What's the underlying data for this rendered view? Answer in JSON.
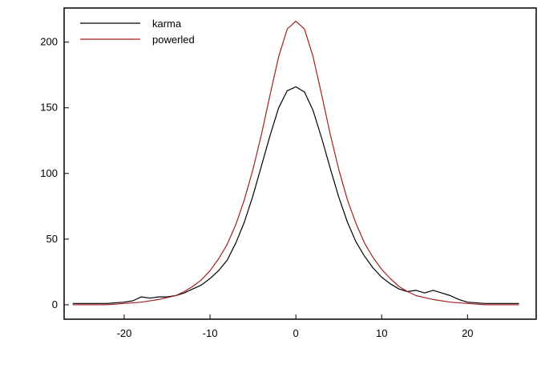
{
  "chart_data": {
    "type": "line",
    "title": "",
    "xlabel": "",
    "ylabel": "",
    "xlim": [
      -27,
      28
    ],
    "ylim": [
      -11,
      226
    ],
    "xticks": [
      -20,
      -10,
      0,
      10,
      20
    ],
    "yticks": [
      0,
      50,
      100,
      150,
      200
    ],
    "xtick_labels": [
      "-20",
      "-10",
      "0",
      "10",
      "20"
    ],
    "ytick_labels": [
      "0",
      "50",
      "100",
      "150",
      "200"
    ],
    "grid": false,
    "legend": "top-left",
    "series": [
      {
        "name": "karma",
        "color": "#000000",
        "x": [
          -26,
          -24,
          -22,
          -20,
          -19,
          -18,
          -17,
          -16,
          -15,
          -14,
          -13,
          -12,
          -11,
          -10,
          -9,
          -8,
          -7,
          -6,
          -5,
          -4,
          -3,
          -2,
          -1,
          0,
          1,
          2,
          3,
          4,
          5,
          6,
          7,
          8,
          9,
          10,
          11,
          12,
          13,
          14,
          15,
          16,
          17,
          18,
          19,
          20,
          22,
          24,
          26
        ],
        "y": [
          1,
          1,
          1,
          2,
          3,
          6,
          5,
          6,
          6,
          7,
          9,
          12,
          15,
          20,
          26,
          34,
          47,
          63,
          83,
          106,
          129,
          150,
          163,
          166,
          162,
          148,
          127,
          104,
          82,
          63,
          48,
          37,
          28,
          21,
          16,
          12,
          10,
          11,
          9,
          11,
          9,
          7,
          4,
          2,
          1,
          1,
          1
        ]
      },
      {
        "name": "powerled",
        "color": "#a02020",
        "x": [
          -26,
          -24,
          -22,
          -20,
          -18,
          -16,
          -14,
          -13,
          -12,
          -11,
          -10,
          -9,
          -8,
          -7,
          -6,
          -5,
          -4,
          -3,
          -2,
          -1,
          0,
          1,
          2,
          3,
          4,
          5,
          6,
          7,
          8,
          9,
          10,
          11,
          12,
          13,
          14,
          16,
          18,
          20,
          22,
          24,
          26
        ],
        "y": [
          0,
          0,
          0,
          1,
          2,
          4,
          7,
          10,
          14,
          19,
          26,
          35,
          46,
          61,
          80,
          103,
          130,
          160,
          189,
          210,
          216,
          210,
          189,
          160,
          130,
          103,
          80,
          62,
          47,
          36,
          27,
          20,
          14,
          10,
          7,
          4,
          2,
          1,
          0,
          0,
          0
        ]
      }
    ]
  }
}
